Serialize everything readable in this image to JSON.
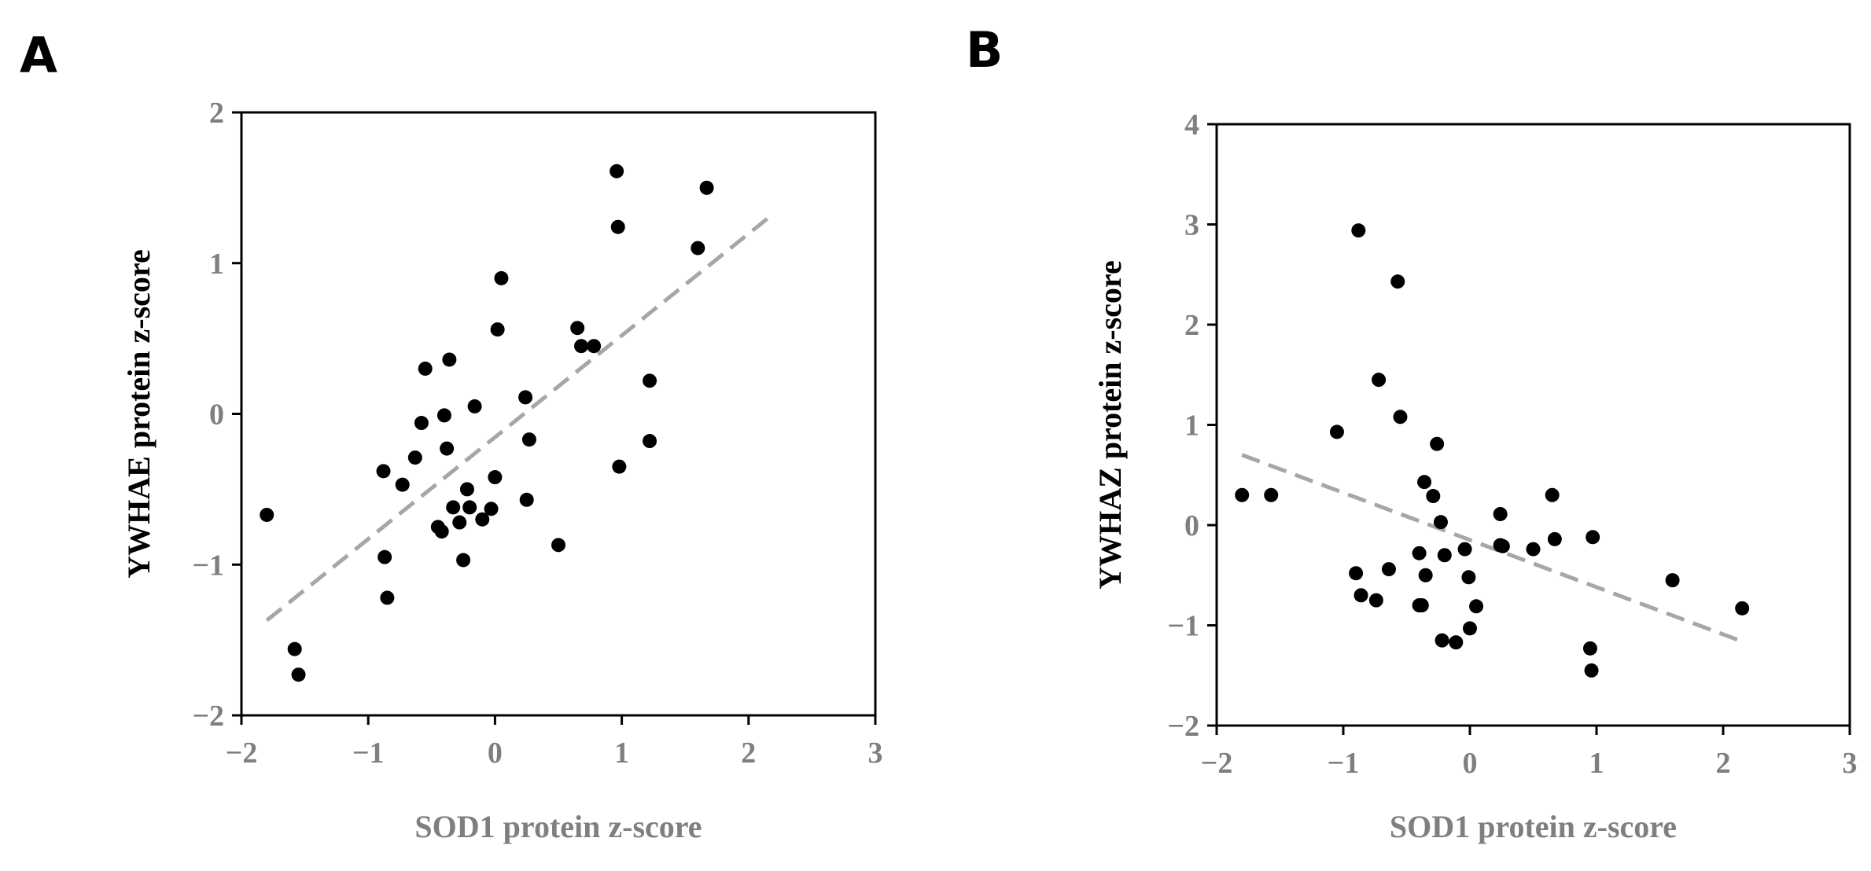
{
  "chart_data": [
    {
      "type": "scatter",
      "panel": "A",
      "title": "",
      "xlabel": "SOD1 protein z-score",
      "ylabel": "YWHAE protein z-score",
      "xlim": [
        -2,
        3
      ],
      "ylim": [
        -2,
        2
      ],
      "xticks": [
        -2,
        -1,
        0,
        1,
        2,
        3
      ],
      "yticks": [
        -2,
        -1,
        0,
        1,
        2
      ],
      "xtick_labels": [
        "−2",
        "−1",
        "0",
        "1",
        "2",
        "3"
      ],
      "ytick_labels": [
        "−2",
        "−1",
        "0",
        "1",
        "2"
      ],
      "trendline": [
        [
          -1.8,
          -1.37
        ],
        [
          2.17,
          1.31
        ]
      ],
      "points": [
        [
          -1.8,
          -0.67
        ],
        [
          -1.58,
          -1.56
        ],
        [
          -1.55,
          -1.73
        ],
        [
          -0.88,
          -0.38
        ],
        [
          -0.87,
          -0.95
        ],
        [
          -0.85,
          -1.22
        ],
        [
          -0.73,
          -0.47
        ],
        [
          -0.63,
          -0.29
        ],
        [
          -0.58,
          -0.06
        ],
        [
          -0.55,
          0.3
        ],
        [
          -0.45,
          -0.75
        ],
        [
          -0.42,
          -0.78
        ],
        [
          -0.4,
          -0.01
        ],
        [
          -0.38,
          -0.23
        ],
        [
          -0.36,
          0.36
        ],
        [
          -0.33,
          -0.62
        ],
        [
          -0.28,
          -0.72
        ],
        [
          -0.25,
          -0.97
        ],
        [
          -0.22,
          -0.5
        ],
        [
          -0.2,
          -0.62
        ],
        [
          -0.16,
          0.05
        ],
        [
          -0.1,
          -0.7
        ],
        [
          -0.03,
          -0.63
        ],
        [
          0.0,
          -0.42
        ],
        [
          0.02,
          0.56
        ],
        [
          0.05,
          0.9
        ],
        [
          0.24,
          0.11
        ],
        [
          0.25,
          -0.57
        ],
        [
          0.27,
          -0.17
        ],
        [
          0.5,
          -0.87
        ],
        [
          0.65,
          0.57
        ],
        [
          0.68,
          0.45
        ],
        [
          0.78,
          0.45
        ],
        [
          0.96,
          1.61
        ],
        [
          0.97,
          1.24
        ],
        [
          0.98,
          -0.35
        ],
        [
          1.22,
          0.22
        ],
        [
          1.22,
          -0.18
        ],
        [
          1.6,
          1.1
        ],
        [
          1.67,
          1.5
        ]
      ]
    },
    {
      "type": "scatter",
      "panel": "B",
      "title": "",
      "xlabel": "SOD1 protein z-score",
      "ylabel": "YWHAZ protein z-score",
      "xlim": [
        -2,
        3
      ],
      "ylim": [
        -2,
        4
      ],
      "xticks": [
        -2,
        -1,
        0,
        1,
        2,
        3
      ],
      "yticks": [
        -2,
        -1,
        0,
        1,
        2,
        3,
        4
      ],
      "xtick_labels": [
        "−2",
        "−1",
        "0",
        "1",
        "2",
        "3"
      ],
      "ytick_labels": [
        "−2",
        "−1",
        "0",
        "1",
        "2",
        "3",
        "4"
      ],
      "trendline": [
        [
          -1.8,
          0.7
        ],
        [
          2.17,
          -1.17
        ]
      ],
      "points": [
        [
          -1.8,
          0.3
        ],
        [
          -1.57,
          0.3
        ],
        [
          -1.05,
          0.93
        ],
        [
          -0.9,
          -0.48
        ],
        [
          -0.88,
          2.94
        ],
        [
          -0.86,
          -0.7
        ],
        [
          -0.74,
          -0.75
        ],
        [
          -0.72,
          1.45
        ],
        [
          -0.64,
          -0.44
        ],
        [
          -0.57,
          2.43
        ],
        [
          -0.55,
          1.08
        ],
        [
          -0.4,
          -0.8
        ],
        [
          -0.4,
          -0.28
        ],
        [
          -0.38,
          -0.8
        ],
        [
          -0.36,
          0.43
        ],
        [
          -0.35,
          -0.5
        ],
        [
          -0.29,
          0.29
        ],
        [
          -0.26,
          0.81
        ],
        [
          -0.23,
          0.03
        ],
        [
          -0.22,
          -1.15
        ],
        [
          -0.2,
          -0.3
        ],
        [
          -0.11,
          -1.17
        ],
        [
          -0.04,
          -0.24
        ],
        [
          -0.01,
          -0.52
        ],
        [
          0.0,
          -1.03
        ],
        [
          0.05,
          -0.81
        ],
        [
          0.24,
          0.11
        ],
        [
          0.24,
          -0.2
        ],
        [
          0.26,
          -0.21
        ],
        [
          0.5,
          -0.24
        ],
        [
          0.65,
          0.3
        ],
        [
          0.67,
          -0.14
        ],
        [
          0.95,
          -1.23
        ],
        [
          0.96,
          -1.45
        ],
        [
          0.97,
          -0.12
        ],
        [
          1.6,
          -0.55
        ],
        [
          2.15,
          -0.83
        ]
      ]
    }
  ]
}
